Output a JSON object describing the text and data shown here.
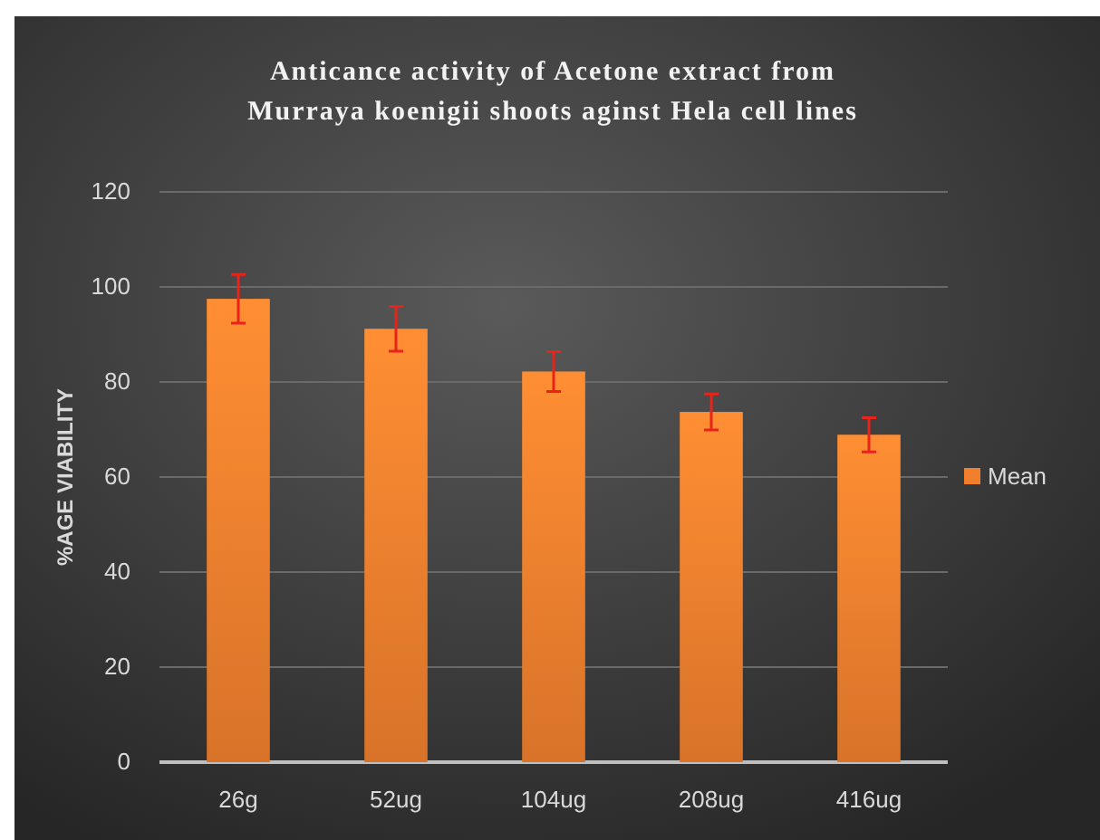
{
  "chart_data": {
    "type": "bar",
    "title": "Anticance activity of Acetone extract from\nMurraya koenigii shoots aginst Hela cell lines",
    "ylabel": "%AGE VIABILITY",
    "categories": [
      "26g",
      "52ug",
      "104ug",
      "208ug",
      "416ug"
    ],
    "series": [
      {
        "name": "Mean",
        "color": "#f0802e",
        "values": [
          97.5,
          91.2,
          82.2,
          73.7,
          68.9
        ],
        "errors": [
          5.1,
          4.7,
          4.2,
          3.8,
          3.6
        ]
      }
    ],
    "ylim": [
      0,
      120
    ],
    "yticks": [
      0,
      20,
      40,
      60,
      80,
      100,
      120
    ],
    "grid": "y",
    "legend": "right"
  }
}
